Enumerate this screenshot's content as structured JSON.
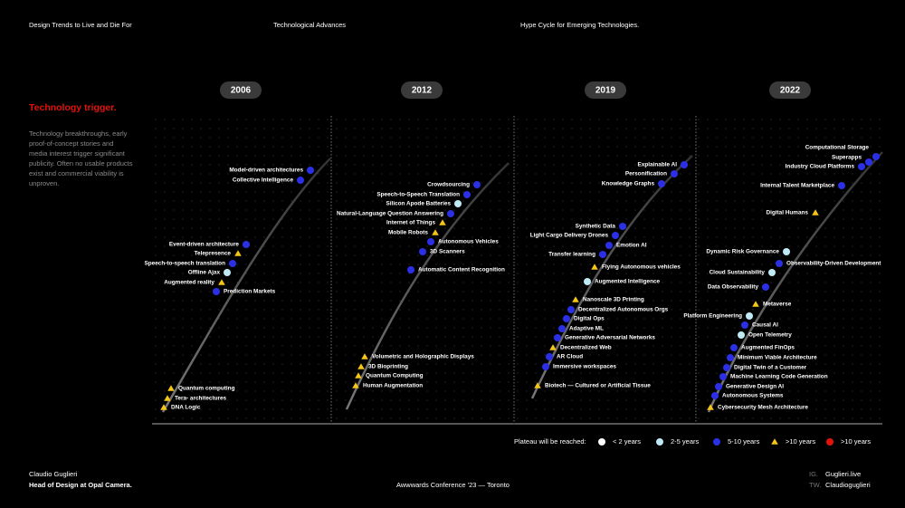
{
  "header": {
    "nav": [
      "Design Trends to Live and Die For",
      "Technological Advances",
      "Hype Cycle for Emerging Technologies."
    ]
  },
  "sidebar": {
    "title": "Technology trigger.",
    "description": "Technology breakthroughs, early proof-of-concept stories and media interest trigger significant publicity. Often no usable products exist and commercial viability is unproven."
  },
  "panels": [
    {
      "year": "2006",
      "items": [
        {
          "label": "Model-driven architectures",
          "color": "#2b2fe6",
          "shape": "circle"
        },
        {
          "label": "Collective Intelligence",
          "color": "#2b2fe6",
          "shape": "circle"
        },
        {
          "label": "Event-driven architecture",
          "color": "#2b2fe6",
          "shape": "circle"
        },
        {
          "label": "Telepresence",
          "color": "#f5c518",
          "shape": "triangle"
        },
        {
          "label": "Speech-to-speech translation",
          "color": "#2b2fe6",
          "shape": "circle"
        },
        {
          "label": "Offline Ajax",
          "color": "#bfeaf5",
          "shape": "circle"
        },
        {
          "label": "Augmented reality",
          "color": "#f5c518",
          "shape": "triangle"
        },
        {
          "label": "Prediction Markets",
          "color": "#2b2fe6",
          "shape": "circle"
        },
        {
          "label": "Quantum computing",
          "color": "#f5c518",
          "shape": "triangle"
        },
        {
          "label": "Tera- architectures",
          "color": "#f5c518",
          "shape": "triangle"
        },
        {
          "label": "DNA Logic",
          "color": "#f5c518",
          "shape": "triangle"
        }
      ]
    },
    {
      "year": "2012",
      "items": [
        {
          "label": "Crowdsourcing",
          "color": "#2b2fe6",
          "shape": "circle"
        },
        {
          "label": "Speech-to-Speech Translation",
          "color": "#2b2fe6",
          "shape": "circle"
        },
        {
          "label": "Silicon Apode Batteries",
          "color": "#bfeaf5",
          "shape": "circle"
        },
        {
          "label": "Natural-Language Question Answering",
          "color": "#2b2fe6",
          "shape": "circle"
        },
        {
          "label": "Internet of Things",
          "color": "#f5c518",
          "shape": "triangle"
        },
        {
          "label": "Mobile Robots",
          "color": "#f5c518",
          "shape": "triangle"
        },
        {
          "label": "Autonomous Vehicles",
          "color": "#2b2fe6",
          "shape": "circle"
        },
        {
          "label": "3D Scanners",
          "color": "#2b2fe6",
          "shape": "circle"
        },
        {
          "label": "Automatic Content Recognition",
          "color": "#2b2fe6",
          "shape": "circle"
        },
        {
          "label": "Volumetric and Holographic Displays",
          "color": "#f5c518",
          "shape": "triangle"
        },
        {
          "label": "3D Bioprinting",
          "color": "#f5c518",
          "shape": "triangle"
        },
        {
          "label": "Quantum Computing",
          "color": "#f5c518",
          "shape": "triangle"
        },
        {
          "label": "Human Augmentation",
          "color": "#f5c518",
          "shape": "triangle"
        }
      ]
    },
    {
      "year": "2019",
      "items": [
        {
          "label": "Explainable AI",
          "color": "#2b2fe6",
          "shape": "circle"
        },
        {
          "label": "Personification",
          "color": "#2b2fe6",
          "shape": "circle"
        },
        {
          "label": "Knowledge Graphs",
          "color": "#2b2fe6",
          "shape": "circle"
        },
        {
          "label": "Synthetic Data",
          "color": "#2b2fe6",
          "shape": "circle"
        },
        {
          "label": "Light Cargo Delivery Drones",
          "color": "#2b2fe6",
          "shape": "circle"
        },
        {
          "label": "Emotion AI",
          "color": "#2b2fe6",
          "shape": "circle"
        },
        {
          "label": "Transfer learning",
          "color": "#2b2fe6",
          "shape": "circle"
        },
        {
          "label": "Flying Autonomous vehicles",
          "color": "#f5c518",
          "shape": "triangle"
        },
        {
          "label": "Augmented Intelligence",
          "color": "#bfeaf5",
          "shape": "circle"
        },
        {
          "label": "Nanoscale 3D Printing",
          "color": "#f5c518",
          "shape": "triangle"
        },
        {
          "label": "Decentralized Autonomous Orgs",
          "color": "#2b2fe6",
          "shape": "circle"
        },
        {
          "label": "Digital Ops",
          "color": "#2b2fe6",
          "shape": "circle"
        },
        {
          "label": "Adaptive ML",
          "color": "#2b2fe6",
          "shape": "circle"
        },
        {
          "label": "Generative Adversarial Networks",
          "color": "#2b2fe6",
          "shape": "circle"
        },
        {
          "label": "Decentralized Web",
          "color": "#f5c518",
          "shape": "triangle"
        },
        {
          "label": "AR Cloud",
          "color": "#2b2fe6",
          "shape": "circle"
        },
        {
          "label": "Immersive workspaces",
          "color": "#2b2fe6",
          "shape": "circle"
        },
        {
          "label": "Biotech — Cultured or Artificial Tissue",
          "color": "#f5c518",
          "shape": "triangle"
        }
      ]
    },
    {
      "year": "2022",
      "items": [
        {
          "label": "Computational Storage",
          "color": "#2b2fe6",
          "shape": "circle"
        },
        {
          "label": "Superapps",
          "color": "#2b2fe6",
          "shape": "circle"
        },
        {
          "label": "Industry Cloud Platforms",
          "color": "#2b2fe6",
          "shape": "circle"
        },
        {
          "label": "Internal Talent Marketplace",
          "color": "#2b2fe6",
          "shape": "circle"
        },
        {
          "label": "Digital Humans",
          "color": "#f5c518",
          "shape": "triangle"
        },
        {
          "label": "Dynamic Risk Governance",
          "color": "#bfeaf5",
          "shape": "circle"
        },
        {
          "label": "Observability-Driven Development",
          "color": "#2b2fe6",
          "shape": "circle"
        },
        {
          "label": "Cloud Sustainability",
          "color": "#bfeaf5",
          "shape": "circle"
        },
        {
          "label": "Data Observability",
          "color": "#2b2fe6",
          "shape": "circle"
        },
        {
          "label": "Metaverse",
          "color": "#f5c518",
          "shape": "triangle"
        },
        {
          "label": "Platform Engineering",
          "color": "#bfeaf5",
          "shape": "circle"
        },
        {
          "label": "Causal AI",
          "color": "#2b2fe6",
          "shape": "circle"
        },
        {
          "label": "Open Telemetry",
          "color": "#bfeaf5",
          "shape": "circle"
        },
        {
          "label": "Augmented FinOps",
          "color": "#2b2fe6",
          "shape": "circle"
        },
        {
          "label": "Minimum Viable Architecture",
          "color": "#2b2fe6",
          "shape": "circle"
        },
        {
          "label": "Digital Twin of a Customer",
          "color": "#2b2fe6",
          "shape": "circle"
        },
        {
          "label": "Machine Learning Code Generation",
          "color": "#2b2fe6",
          "shape": "circle"
        },
        {
          "label": "Generative Design AI",
          "color": "#2b2fe6",
          "shape": "circle"
        },
        {
          "label": "Autonomous Systems",
          "color": "#2b2fe6",
          "shape": "circle"
        },
        {
          "label": "Cybersecurity Mesh Architecture",
          "color": "#f5c518",
          "shape": "triangle"
        }
      ]
    }
  ],
  "legend": {
    "title": "Plateau will be reached:",
    "entries": [
      {
        "label": "< 2 years",
        "color": "#ffffff",
        "shape": "circle"
      },
      {
        "label": "2-5 years",
        "color": "#bfeaf5",
        "shape": "circle"
      },
      {
        "label": "5-10 years",
        "color": "#2b2fe6",
        "shape": "circle"
      },
      {
        "label": ">10 years",
        "color": "#f5c518",
        "shape": "triangle"
      },
      {
        "label": ">10 years",
        "color": "#e3120b",
        "shape": "circle"
      }
    ]
  },
  "footer": {
    "name": "Claudio Guglieri",
    "role": "Head of Design at Opal Camera.",
    "event": "Awwwards Conference '23 — Toronto",
    "ig_label": "IG.",
    "ig": "Guglieri.live",
    "tw_label": "TW.",
    "tw": "Claudioguglieri"
  }
}
